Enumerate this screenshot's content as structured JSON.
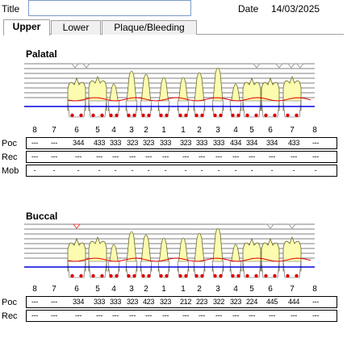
{
  "header": {
    "title_label": "Title",
    "title_value": "",
    "date_label": "Date",
    "date_value": "14/03/2025"
  },
  "tabs": [
    {
      "label": "Upper",
      "active": true
    },
    {
      "label": "Lower",
      "active": false
    },
    {
      "label": "Plaque/Bleeding",
      "active": false
    }
  ],
  "colors": {
    "gumline": "#e00000",
    "boneline": "#0000e0",
    "tooth_fill": "#fcfcb0",
    "tooth_stroke": "#6a6a30",
    "bleeding_dot": "#dd0000",
    "marker": "#9a9a9a",
    "marker_red": "#e04040"
  },
  "tooth_numbers": [
    "8",
    "7",
    "6",
    "5",
    "4",
    "3",
    "2",
    "1",
    "1",
    "2",
    "3",
    "4",
    "5",
    "6",
    "7",
    "8"
  ],
  "palatal": {
    "title": "Palatal",
    "rows": [
      {
        "label": "Poc",
        "values": [
          "---",
          "---",
          "344",
          "433",
          "333",
          "323",
          "323",
          "333",
          "323",
          "333",
          "333",
          "434",
          "334",
          "334",
          "433",
          "---"
        ]
      },
      {
        "label": "Rec",
        "values": [
          "---",
          "---",
          "---",
          "---",
          "---",
          "---",
          "---",
          "---",
          "---",
          "---",
          "---",
          "---",
          "---",
          "---",
          "---",
          "---"
        ]
      },
      {
        "label": "Mob",
        "values": [
          "-",
          "-",
          "-",
          "-",
          "-",
          "-",
          "-",
          "-",
          "-",
          "-",
          "-",
          "-",
          "-",
          "-",
          "-",
          "-"
        ]
      }
    ]
  },
  "buccal": {
    "title": "Buccal",
    "rows": [
      {
        "label": "Poc",
        "values": [
          "---",
          "---",
          "334",
          "333",
          "333",
          "323",
          "423",
          "323",
          "212",
          "223",
          "322",
          "323",
          "224",
          "445",
          "444",
          "---"
        ]
      },
      {
        "label": "Rec",
        "values": [
          "---",
          "---",
          "---",
          "---",
          "---",
          "---",
          "---",
          "---",
          "---",
          "---",
          "---",
          "---",
          "---",
          "---",
          "---",
          "---"
        ]
      }
    ]
  }
}
